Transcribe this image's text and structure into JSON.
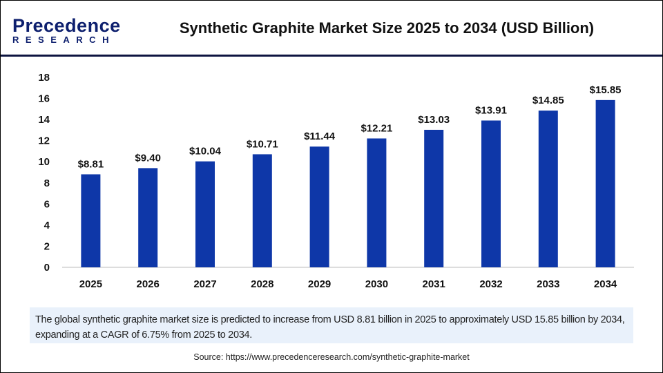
{
  "logo": {
    "line1": "Precedence",
    "line2": "RESEARCH"
  },
  "chart_data": {
    "type": "bar",
    "title": "Synthetic Graphite Market Size 2025 to 2034 (USD Billion)",
    "categories": [
      "2025",
      "2026",
      "2027",
      "2028",
      "2029",
      "2030",
      "2031",
      "2032",
      "2033",
      "2034"
    ],
    "values": [
      8.81,
      9.4,
      10.04,
      10.71,
      11.44,
      12.21,
      13.03,
      13.91,
      14.85,
      15.85
    ],
    "data_labels": [
      "$8.81",
      "$9.40",
      "$10.04",
      "$10.71",
      "$11.44",
      "$12.21",
      "$13.03",
      "$13.91",
      "$14.85",
      "$15.85"
    ],
    "yticks": [
      "0",
      "2",
      "4",
      "6",
      "8",
      "10",
      "12",
      "14",
      "16",
      "18"
    ],
    "ylim": [
      0,
      18
    ],
    "xlabel": "",
    "ylabel": "",
    "grid": false,
    "bar_color": "#0e37a8"
  },
  "caption": "The global synthetic graphite market size is predicted to increase from USD 8.81 billion in 2025 to approximately USD 15.85 billion by 2034, expanding at a CAGR of 6.75% from 2025 to 2034.",
  "source": "Source: https://www.precedenceresearch.com/synthetic-graphite-market"
}
